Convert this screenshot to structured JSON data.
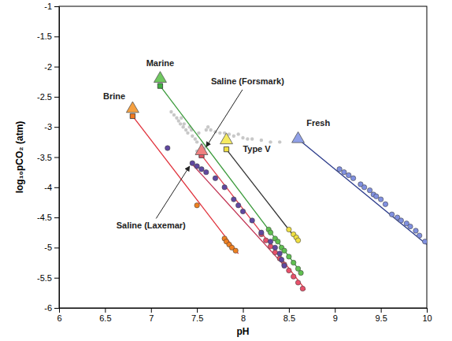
{
  "chart_data": {
    "type": "scatter",
    "x_label": "pH",
    "y_label": "log₁₀pCO₂ (atm)",
    "xlim": [
      6,
      10
    ],
    "ylim": [
      -6,
      -1
    ],
    "xticks": [
      6,
      6.5,
      7,
      7.5,
      8,
      8.5,
      9,
      9.5,
      10
    ],
    "yticks": [
      -6,
      -5.5,
      -5,
      -4.5,
      -4,
      -3.5,
      -3,
      -2.5,
      -2,
      -1.5,
      -1
    ],
    "series": [
      {
        "type": "scatter",
        "marker": "circle",
        "color": "#c8c8c8",
        "x": [
          7.22,
          7.25,
          7.28,
          7.3,
          7.32,
          7.35,
          7.33,
          7.38,
          7.4,
          7.42,
          7.45,
          7.48,
          7.5,
          7.52,
          7.55,
          7.58,
          7.6,
          7.62,
          7.65,
          7.7,
          7.75,
          7.8,
          7.85,
          7.9,
          7.95,
          8.0,
          8.05,
          8.1,
          8.2,
          8.3,
          8.4,
          7.36,
          7.44,
          7.5,
          7.56
        ],
        "values": [
          -2.75,
          -2.8,
          -2.85,
          -2.9,
          -2.95,
          -3.0,
          -2.85,
          -3.05,
          -3.1,
          -3.0,
          -3.15,
          -3.2,
          -3.25,
          -3.1,
          -3.3,
          -3.35,
          -3.05,
          -3.0,
          -3.05,
          -3.08,
          -3.1,
          -3.1,
          -3.12,
          -3.15,
          -3.12,
          -3.18,
          -3.2,
          -3.2,
          -3.22,
          -3.25,
          -3.25,
          -2.95,
          -3.05,
          -3.4,
          -3.45
        ]
      },
      {
        "type": "line",
        "color": "#e0303a",
        "x": [
          6.8,
          7.95
        ],
        "values": [
          -2.82,
          -5.1
        ]
      },
      {
        "type": "line",
        "color": "#3a9a3a",
        "x": [
          7.1,
          8.65
        ],
        "values": [
          -2.32,
          -5.45
        ]
      },
      {
        "type": "line",
        "color": "#e04050",
        "x": [
          7.55,
          8.68
        ],
        "values": [
          -3.47,
          -5.7
        ]
      },
      {
        "type": "line",
        "color": "#c03050",
        "x": [
          7.45,
          8.45
        ],
        "values": [
          -3.62,
          -5.3
        ]
      },
      {
        "type": "line",
        "color": "#333333",
        "x": [
          7.82,
          8.6
        ],
        "values": [
          -3.37,
          -4.9
        ]
      },
      {
        "type": "line",
        "color": "#2a3a8a",
        "x": [
          8.6,
          10
        ],
        "values": [
          -3.2,
          -4.95
        ]
      },
      {
        "type": "scatter",
        "marker": "circle",
        "color": "#f08020",
        "x": [
          7.5,
          7.8,
          7.82,
          7.85,
          7.88,
          7.92
        ],
        "values": [
          -4.3,
          -4.85,
          -4.9,
          -4.95,
          -5.0,
          -5.05
        ]
      },
      {
        "type": "scatter",
        "marker": "circle",
        "color": "#60c050",
        "x": [
          8.28,
          8.3,
          8.35,
          8.38,
          8.42,
          8.45,
          8.5,
          8.55,
          8.6,
          8.63
        ],
        "values": [
          -4.7,
          -4.75,
          -4.85,
          -4.9,
          -5.0,
          -5.05,
          -5.15,
          -5.25,
          -5.35,
          -5.42
        ]
      },
      {
        "type": "scatter",
        "marker": "circle",
        "color": "#e8506a",
        "x": [
          8.2,
          8.25,
          8.3,
          8.35,
          8.4,
          8.45,
          8.5,
          8.55,
          8.6,
          8.65
        ],
        "values": [
          -4.78,
          -4.88,
          -4.98,
          -5.08,
          -5.18,
          -5.28,
          -5.38,
          -5.48,
          -5.58,
          -5.68
        ]
      },
      {
        "type": "scatter",
        "marker": "circle",
        "color": "#6048a0",
        "x": [
          7.18,
          7.45,
          7.5,
          7.55,
          7.6,
          7.7,
          7.8,
          7.9,
          7.95,
          8.0,
          8.1,
          8.2,
          8.3,
          8.35,
          8.4,
          8.42,
          8.45
        ],
        "values": [
          -3.35,
          -3.6,
          -3.65,
          -3.7,
          -3.75,
          -3.85,
          -4.0,
          -4.2,
          -4.3,
          -4.4,
          -4.55,
          -4.75,
          -4.9,
          -5.0,
          -5.1,
          -5.2,
          -5.3
        ]
      },
      {
        "type": "scatter",
        "marker": "circle",
        "color": "#f0e040",
        "x": [
          8.5,
          8.55,
          8.58,
          8.6
        ],
        "values": [
          -4.7,
          -4.78,
          -4.83,
          -4.88
        ]
      },
      {
        "type": "scatter",
        "marker": "circle",
        "color": "#8090e0",
        "x": [
          9.05,
          9.1,
          9.15,
          9.2,
          9.28,
          9.32,
          9.38,
          9.42,
          9.45,
          9.5,
          9.55,
          9.62,
          9.68,
          9.72,
          9.78,
          9.82,
          9.88,
          9.92,
          9.98
        ],
        "values": [
          -3.7,
          -3.75,
          -3.8,
          -3.85,
          -3.95,
          -4.0,
          -4.05,
          -4.12,
          -4.15,
          -4.2,
          -4.28,
          -4.45,
          -4.5,
          -4.55,
          -4.6,
          -4.65,
          -4.72,
          -4.8,
          -4.9
        ]
      },
      {
        "type": "scatter",
        "marker": "square",
        "color": "#f07820",
        "x": [
          6.8
        ],
        "values": [
          -2.82
        ]
      },
      {
        "type": "scatter",
        "marker": "square",
        "color": "#40b040",
        "x": [
          7.1
        ],
        "values": [
          -2.32
        ]
      },
      {
        "type": "scatter",
        "marker": "square",
        "color": "#f0e040",
        "x": [
          7.82
        ],
        "values": [
          -3.37
        ]
      },
      {
        "type": "scatter",
        "marker": "square",
        "color": "#e85060",
        "x": [
          7.55
        ],
        "values": [
          -3.47
        ]
      },
      {
        "type": "scatter",
        "marker": "triangle",
        "color": "#f5a040",
        "x": [
          6.8
        ],
        "values": [
          -2.7
        ]
      },
      {
        "type": "scatter",
        "marker": "triangle",
        "color": "#70c860",
        "x": [
          7.1
        ],
        "values": [
          -2.2
        ]
      },
      {
        "type": "scatter",
        "marker": "triangle",
        "color": "#f08080",
        "x": [
          7.55
        ],
        "values": [
          -3.4
        ]
      },
      {
        "type": "scatter",
        "marker": "triangle",
        "color": "#f5ea60",
        "x": [
          7.82
        ],
        "values": [
          -3.22
        ]
      },
      {
        "type": "scatter",
        "marker": "triangle",
        "color": "#90a0e8",
        "x": [
          8.6
        ],
        "values": [
          -3.2
        ]
      }
    ],
    "annotations": [
      {
        "text": "Marine",
        "x": 7.1,
        "y": -1.95
      },
      {
        "text": "Brine",
        "x": 6.6,
        "y": -2.5
      },
      {
        "text": "Saline (Forsmark)",
        "x": 8.05,
        "y": -2.25,
        "arrow": [
          7.6,
          -3.33
        ]
      },
      {
        "text": "Type V",
        "x": 8.15,
        "y": -3.38
      },
      {
        "text": "Fresh",
        "x": 8.82,
        "y": -2.95
      },
      {
        "text": "Saline (Laxemar)",
        "x": 7.0,
        "y": -4.65,
        "arrow": [
          7.42,
          -3.65
        ]
      }
    ]
  }
}
